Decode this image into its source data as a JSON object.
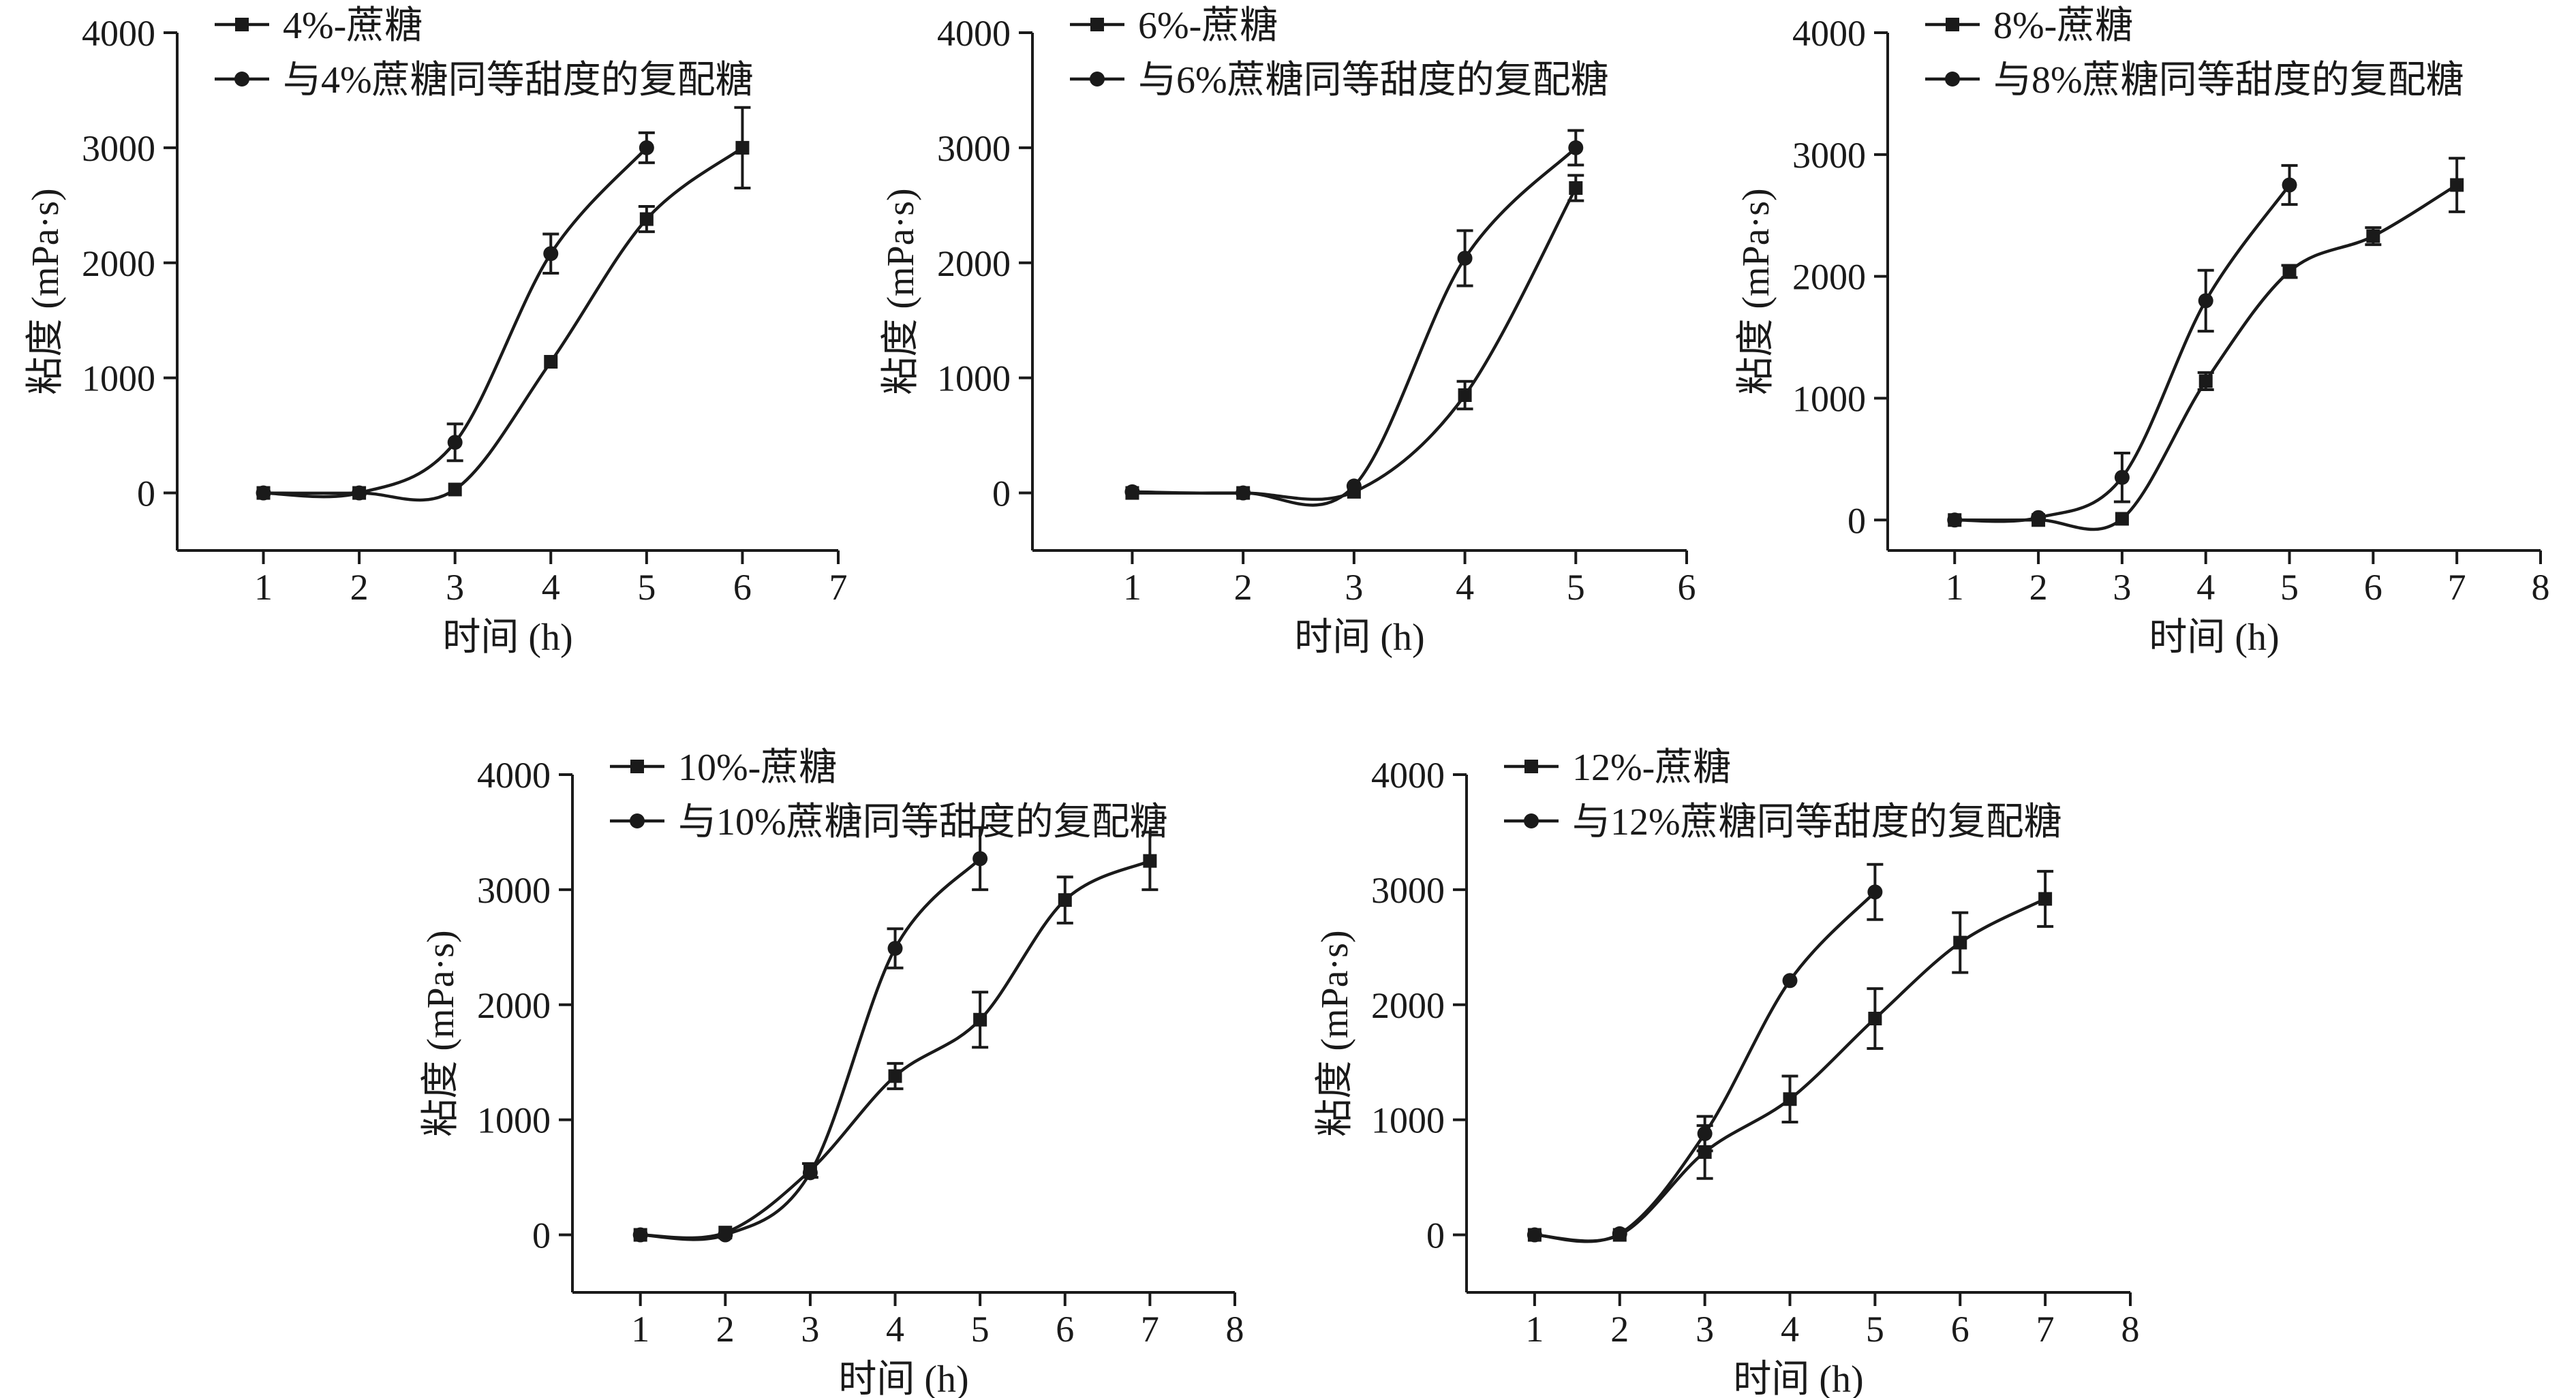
{
  "chart_data": [
    {
      "type": "line",
      "title": "",
      "xlabel": "时间 (h)",
      "ylabel": "粘度 (mPa·s)",
      "xlim": [
        0.1,
        7
      ],
      "ylim": [
        -500,
        4000
      ],
      "xticks": [
        1,
        2,
        3,
        4,
        5,
        6,
        7
      ],
      "yticks": [
        0,
        1000,
        2000,
        3000,
        4000
      ],
      "series": [
        {
          "name": "4%-蔗糖",
          "marker": "square",
          "x": [
            1,
            2,
            3,
            4,
            5,
            6
          ],
          "values": [
            0,
            0,
            30,
            1140,
            2380,
            3000
          ],
          "err": [
            0,
            0,
            0,
            0,
            110,
            350
          ]
        },
        {
          "name": "与4%蔗糖同等甜度的复配糖",
          "marker": "circle",
          "x": [
            1,
            2,
            3,
            4,
            5
          ],
          "values": [
            0,
            0,
            440,
            2080,
            3000
          ],
          "err": [
            0,
            0,
            160,
            170,
            130
          ]
        }
      ]
    },
    {
      "type": "line",
      "title": "",
      "xlabel": "时间 (h)",
      "ylabel": "粘度 (mPa·s)",
      "xlim": [
        0.1,
        6
      ],
      "ylim": [
        -500,
        4000
      ],
      "xticks": [
        1,
        2,
        3,
        4,
        5,
        6
      ],
      "yticks": [
        0,
        1000,
        2000,
        3000,
        4000
      ],
      "series": [
        {
          "name": "6%-蔗糖",
          "marker": "square",
          "x": [
            1,
            2,
            3,
            4,
            5
          ],
          "values": [
            0,
            0,
            10,
            850,
            2650
          ],
          "err": [
            0,
            0,
            0,
            120,
            110
          ]
        },
        {
          "name": "与6%蔗糖同等甜度的复配糖",
          "marker": "circle",
          "x": [
            1,
            2,
            3,
            4,
            5
          ],
          "values": [
            10,
            0,
            60,
            2040,
            3000
          ],
          "err": [
            0,
            0,
            0,
            240,
            150
          ]
        }
      ]
    },
    {
      "type": "line",
      "title": "",
      "xlabel": "时间 (h)",
      "ylabel": "粘度 (mPa·s)",
      "xlim": [
        0.2,
        8
      ],
      "ylim": [
        -250,
        4000
      ],
      "xticks": [
        1,
        2,
        3,
        4,
        5,
        6,
        7,
        8
      ],
      "yticks": [
        0,
        1000,
        2000,
        3000,
        4000
      ],
      "series": [
        {
          "name": "8%-蔗糖",
          "marker": "square",
          "x": [
            1,
            2,
            3,
            4,
            5,
            6,
            7
          ],
          "values": [
            0,
            0,
            10,
            1140,
            2040,
            2330,
            2750
          ],
          "err": [
            0,
            0,
            0,
            70,
            50,
            70,
            220
          ]
        },
        {
          "name": "与8%蔗糖同等甜度的复配糖",
          "marker": "circle",
          "x": [
            1,
            2,
            3,
            4,
            5
          ],
          "values": [
            0,
            20,
            350,
            1800,
            2750
          ],
          "err": [
            0,
            0,
            200,
            250,
            160
          ]
        }
      ]
    },
    {
      "type": "line",
      "title": "",
      "xlabel": "时间 (h)",
      "ylabel": "粘度 (mPa·s)",
      "xlim": [
        0.2,
        8
      ],
      "ylim": [
        -500,
        4000
      ],
      "xticks": [
        1,
        2,
        3,
        4,
        5,
        6,
        7,
        8
      ],
      "yticks": [
        0,
        1000,
        2000,
        3000,
        4000
      ],
      "series": [
        {
          "name": "10%-蔗糖",
          "marker": "square",
          "x": [
            1,
            2,
            3,
            4,
            5,
            6,
            7
          ],
          "values": [
            0,
            20,
            560,
            1380,
            1870,
            2910,
            3250
          ],
          "err": [
            0,
            0,
            60,
            110,
            240,
            200,
            250
          ]
        },
        {
          "name": "与10%蔗糖同等甜度的复配糖",
          "marker": "circle",
          "x": [
            1,
            2,
            3,
            4,
            5
          ],
          "values": [
            0,
            0,
            540,
            2490,
            3270
          ],
          "err": [
            0,
            0,
            0,
            170,
            270
          ]
        }
      ]
    },
    {
      "type": "line",
      "title": "",
      "xlabel": "时间 (h)",
      "ylabel": "粘度 (mPa·s)",
      "xlim": [
        0.2,
        8
      ],
      "ylim": [
        -500,
        4000
      ],
      "xticks": [
        1,
        2,
        3,
        4,
        5,
        6,
        7,
        8
      ],
      "yticks": [
        0,
        1000,
        2000,
        3000,
        4000
      ],
      "series": [
        {
          "name": "12%-蔗糖",
          "marker": "square",
          "x": [
            1,
            2,
            3,
            4,
            5,
            6,
            7
          ],
          "values": [
            0,
            0,
            720,
            1180,
            1880,
            2540,
            2920
          ],
          "err": [
            0,
            0,
            230,
            200,
            260,
            260,
            240
          ]
        },
        {
          "name": "与12%蔗糖同等甜度的复配糖",
          "marker": "circle",
          "x": [
            1,
            2,
            3,
            4,
            5
          ],
          "values": [
            0,
            10,
            880,
            2210,
            2980
          ],
          "err": [
            0,
            0,
            150,
            0,
            240
          ]
        }
      ]
    }
  ]
}
